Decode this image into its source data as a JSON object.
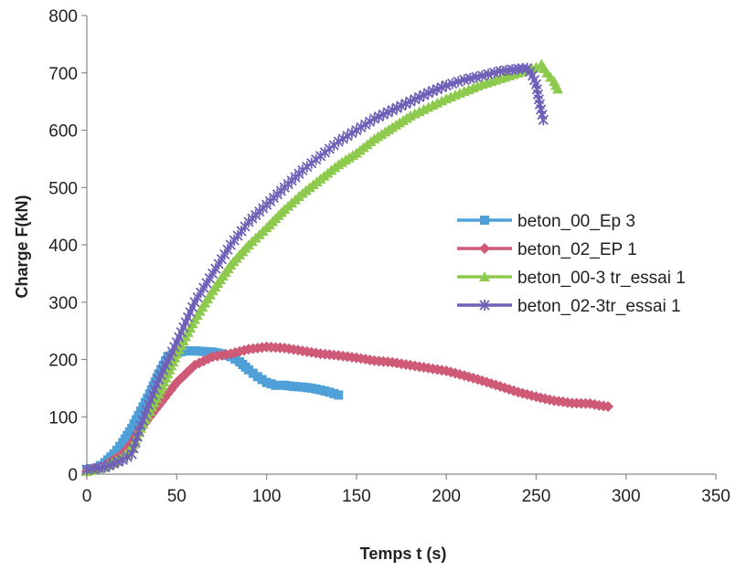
{
  "chart_data": {
    "type": "line",
    "title": "",
    "xlabel": "Temps t (s)",
    "ylabel": "Charge F(kN)",
    "xlim": [
      0,
      350
    ],
    "ylim": [
      0,
      800
    ],
    "xticks": [
      0,
      50,
      100,
      150,
      200,
      250,
      300,
      350
    ],
    "yticks": [
      0,
      100,
      200,
      300,
      400,
      500,
      600,
      700,
      800
    ],
    "grid": false,
    "legend_position": "right",
    "series": [
      {
        "name": "beton_00_Ep 3",
        "color": "#4f9fd8",
        "marker": "square",
        "points": [
          [
            0,
            8
          ],
          [
            5,
            10
          ],
          [
            10,
            20
          ],
          [
            15,
            35
          ],
          [
            20,
            55
          ],
          [
            25,
            80
          ],
          [
            30,
            110
          ],
          [
            35,
            140
          ],
          [
            40,
            175
          ],
          [
            45,
            205
          ],
          [
            50,
            212
          ],
          [
            55,
            215
          ],
          [
            60,
            215
          ],
          [
            65,
            214
          ],
          [
            70,
            213
          ],
          [
            75,
            210
          ],
          [
            80,
            205
          ],
          [
            85,
            196
          ],
          [
            90,
            182
          ],
          [
            95,
            170
          ],
          [
            100,
            160
          ],
          [
            105,
            155
          ],
          [
            110,
            155
          ],
          [
            115,
            153
          ],
          [
            120,
            152
          ],
          [
            125,
            150
          ],
          [
            130,
            147
          ],
          [
            135,
            143
          ],
          [
            140,
            138
          ]
        ]
      },
      {
        "name": "beton_02_EP 1",
        "color": "#cf5a78",
        "marker": "diamond",
        "points": [
          [
            0,
            5
          ],
          [
            10,
            15
          ],
          [
            20,
            35
          ],
          [
            25,
            55
          ],
          [
            30,
            80
          ],
          [
            40,
            120
          ],
          [
            50,
            160
          ],
          [
            60,
            190
          ],
          [
            70,
            205
          ],
          [
            80,
            210
          ],
          [
            90,
            218
          ],
          [
            100,
            222
          ],
          [
            110,
            220
          ],
          [
            120,
            215
          ],
          [
            130,
            210
          ],
          [
            140,
            207
          ],
          [
            150,
            203
          ],
          [
            160,
            198
          ],
          [
            170,
            195
          ],
          [
            180,
            190
          ],
          [
            190,
            185
          ],
          [
            200,
            180
          ],
          [
            210,
            172
          ],
          [
            220,
            163
          ],
          [
            230,
            153
          ],
          [
            240,
            143
          ],
          [
            250,
            135
          ],
          [
            260,
            128
          ],
          [
            270,
            124
          ],
          [
            280,
            123
          ],
          [
            285,
            120
          ],
          [
            290,
            118
          ]
        ]
      },
      {
        "name": "beton_00-3 tr_essai 1",
        "color": "#8dca4d",
        "marker": "triangle",
        "points": [
          [
            0,
            5
          ],
          [
            10,
            12
          ],
          [
            20,
            30
          ],
          [
            25,
            45
          ],
          [
            30,
            80
          ],
          [
            40,
            140
          ],
          [
            50,
            210
          ],
          [
            60,
            270
          ],
          [
            70,
            320
          ],
          [
            80,
            365
          ],
          [
            90,
            400
          ],
          [
            100,
            430
          ],
          [
            110,
            462
          ],
          [
            120,
            490
          ],
          [
            130,
            515
          ],
          [
            140,
            540
          ],
          [
            150,
            560
          ],
          [
            160,
            585
          ],
          [
            170,
            605
          ],
          [
            180,
            625
          ],
          [
            190,
            640
          ],
          [
            200,
            655
          ],
          [
            210,
            668
          ],
          [
            220,
            680
          ],
          [
            230,
            690
          ],
          [
            240,
            700
          ],
          [
            250,
            710
          ],
          [
            253,
            715
          ],
          [
            256,
            700
          ],
          [
            260,
            685
          ],
          [
            262,
            672
          ]
        ]
      },
      {
        "name": "beton_02-3tr_essai 1",
        "color": "#7060b8",
        "marker": "star",
        "points": [
          [
            0,
            8
          ],
          [
            10,
            12
          ],
          [
            20,
            25
          ],
          [
            25,
            35
          ],
          [
            30,
            85
          ],
          [
            40,
            165
          ],
          [
            50,
            230
          ],
          [
            60,
            300
          ],
          [
            70,
            350
          ],
          [
            80,
            400
          ],
          [
            90,
            440
          ],
          [
            100,
            470
          ],
          [
            110,
            500
          ],
          [
            120,
            530
          ],
          [
            130,
            555
          ],
          [
            140,
            580
          ],
          [
            150,
            600
          ],
          [
            160,
            620
          ],
          [
            170,
            635
          ],
          [
            180,
            650
          ],
          [
            190,
            665
          ],
          [
            200,
            678
          ],
          [
            210,
            688
          ],
          [
            220,
            695
          ],
          [
            230,
            703
          ],
          [
            240,
            707
          ],
          [
            245,
            708
          ],
          [
            248,
            695
          ],
          [
            250,
            680
          ],
          [
            252,
            645
          ],
          [
            254,
            618
          ]
        ]
      }
    ]
  }
}
